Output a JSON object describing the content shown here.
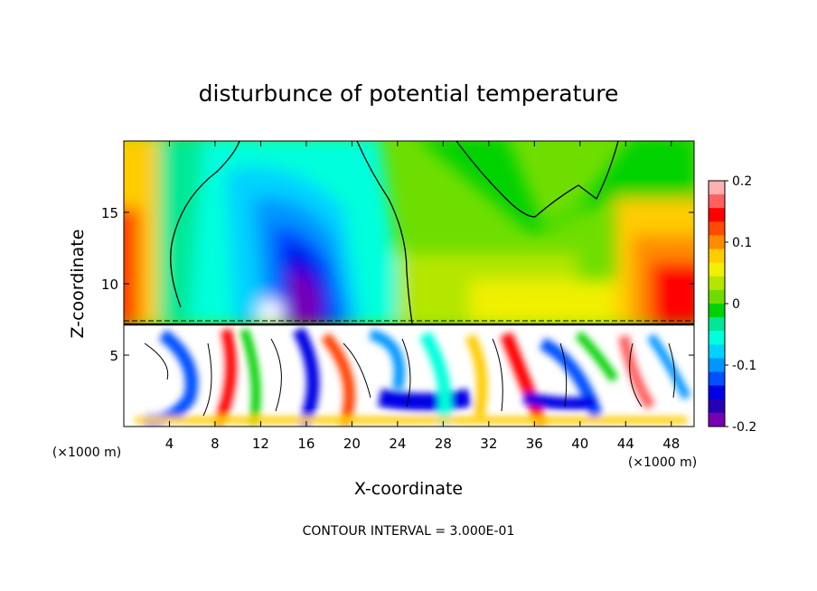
{
  "chart_data": {
    "type": "heatmap",
    "title": "disturbunce of potential temperature",
    "xlabel": "X-coordinate",
    "ylabel": "Z-coordinate",
    "x_unit_left": "(×1000 m)",
    "x_unit_right": "(×1000 m)",
    "xlim": [
      0,
      50
    ],
    "ylim": [
      0,
      20
    ],
    "x_ticks": [
      4,
      8,
      12,
      16,
      20,
      24,
      28,
      32,
      36,
      40,
      44,
      48
    ],
    "y_ticks": [
      5,
      10,
      15
    ],
    "colorbar": {
      "range": [
        -0.2,
        0.2
      ],
      "tick_values": [
        0.2,
        0.1,
        0,
        -0.1,
        -0.2
      ],
      "tick_labels": [
        "0.2",
        "0.1",
        "0",
        "-0.1",
        "-0.2"
      ],
      "colors": [
        "#ffb0b0",
        "#ff6060",
        "#ff0000",
        "#ff4a00",
        "#ff8c00",
        "#ffcc00",
        "#f0f000",
        "#b4e600",
        "#6edc00",
        "#00d200",
        "#00e896",
        "#00ffdc",
        "#00d2ff",
        "#0096ff",
        "#0050ff",
        "#0000e6",
        "#2800b4",
        "#7800b4"
      ]
    },
    "contour_interval_text": "CONTOUR INTERVAL = 3.000E-01",
    "layer_boundary_z": 7.3
  }
}
